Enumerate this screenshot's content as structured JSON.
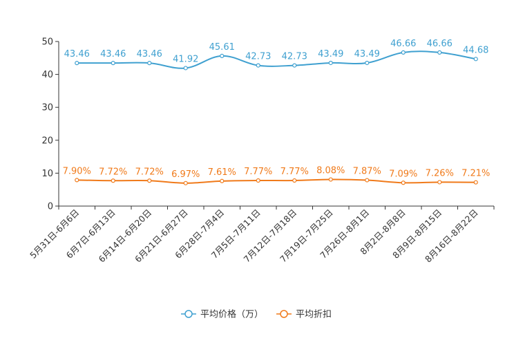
{
  "chart_data": {
    "type": "line",
    "title": "",
    "xlabel": "",
    "ylabel": "",
    "ylim": [
      0,
      50
    ],
    "yticks": [
      0,
      10,
      20,
      30,
      40,
      50
    ],
    "grid": false,
    "legend_position": "bottom-center",
    "categories": [
      "5月31日-6月6日",
      "6月7日-6月13日",
      "6月14日-6月20日",
      "6月21日-6月27日",
      "6月28日-7月4日",
      "7月5日-7月11日",
      "7月12日-7月18日",
      "7月19日-7月25日",
      "7月26日-8月1日",
      "8月2日-8月8日",
      "8月9日-8月15日",
      "8月16日-8月22日"
    ],
    "series": [
      {
        "name": "平均价格（万）",
        "color": "#3fa0d0",
        "values": [
          43.46,
          43.46,
          43.46,
          41.92,
          45.61,
          42.73,
          42.73,
          43.49,
          43.49,
          46.66,
          46.66,
          44.68
        ],
        "labels": [
          "43.46",
          "43.46",
          "43.46",
          "41.92",
          "45.61",
          "42.73",
          "42.73",
          "43.49",
          "43.49",
          "46.66",
          "46.66",
          "44.68"
        ]
      },
      {
        "name": "平均折扣",
        "color": "#f07a1a",
        "values": [
          7.9,
          7.72,
          7.72,
          6.97,
          7.61,
          7.77,
          7.77,
          8.08,
          7.87,
          7.09,
          7.26,
          7.21
        ],
        "labels": [
          "7.90%",
          "7.72%",
          "7.72%",
          "6.97%",
          "7.61%",
          "7.77%",
          "7.77%",
          "8.08%",
          "7.87%",
          "7.09%",
          "7.26%",
          "7.21%"
        ]
      }
    ]
  }
}
